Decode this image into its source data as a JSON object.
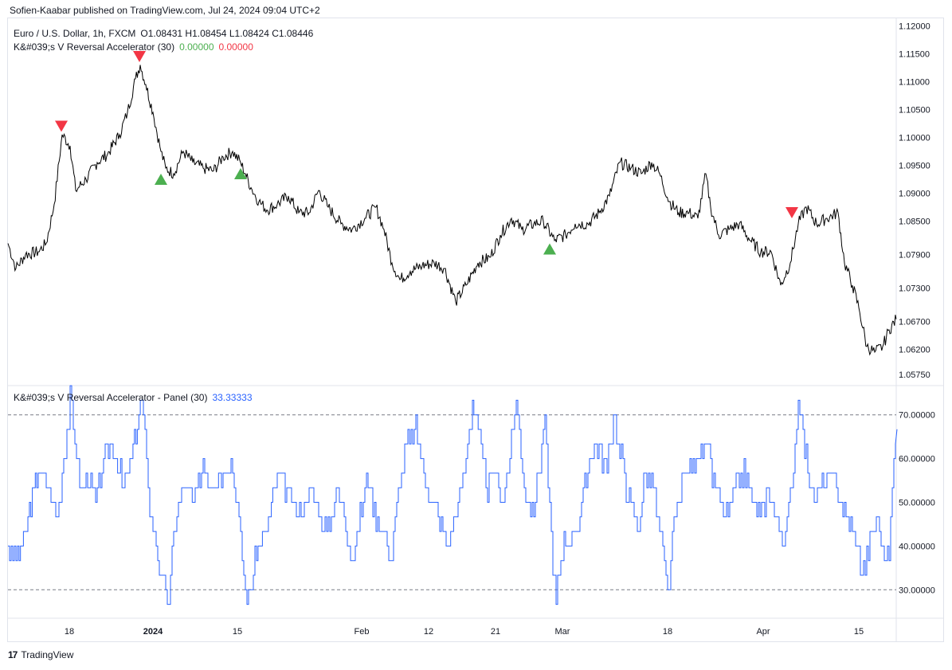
{
  "header": {
    "text": "Sofien-Kaabar published on TradingView.com, Jul 24, 2024 09:04 UTC+2"
  },
  "footer": {
    "brand": "TradingView",
    "logo_text": "17"
  },
  "price_panel": {
    "symbol": "Euro / U.S. Dollar, 1h, FXCM",
    "ohlc": "O1.08431  H1.08454  L1.08424  C1.08446",
    "indicator_name": "K&#039;s V Reversal Accelerator (30)",
    "indicator_val1": "0.00000",
    "indicator_val2": "0.00000",
    "color_up": "#4caf50",
    "color_down": "#f23645"
  },
  "osc_panel": {
    "label": "K&#039;s V Reversal Accelerator - Panel (30)",
    "value": "33.33333",
    "color": "#2962ff"
  },
  "x_axis": {
    "ticks": [
      {
        "label": "18",
        "x": 87,
        "bold": false
      },
      {
        "label": "2024",
        "x": 192,
        "bold": true
      },
      {
        "label": "15",
        "x": 298,
        "bold": false
      },
      {
        "label": "Feb",
        "x": 454,
        "bold": false
      },
      {
        "label": "12",
        "x": 538,
        "bold": false
      },
      {
        "label": "21",
        "x": 622,
        "bold": false
      },
      {
        "label": "Mar",
        "x": 706,
        "bold": false
      },
      {
        "label": "18",
        "x": 838,
        "bold": false
      },
      {
        "label": "Apr",
        "x": 958,
        "bold": false
      },
      {
        "label": "15",
        "x": 1078,
        "bold": false
      }
    ]
  },
  "chart_data": [
    {
      "type": "line",
      "title": "Euro / U.S. Dollar, 1h, FXCM",
      "ylim": [
        1.0555,
        1.1215
      ],
      "y_ticks": [
        "1.12000",
        "1.11500",
        "1.11000",
        "1.10500",
        "1.10000",
        "1.09500",
        "1.09000",
        "1.08500",
        "1.07900",
        "1.07300",
        "1.06700",
        "1.06200",
        "1.05750"
      ],
      "series": [
        {
          "values": [
            [
              0,
              1.081
            ],
            [
              10,
              1.0765
            ],
            [
              22,
              1.079
            ],
            [
              38,
              1.0795
            ],
            [
              48,
              1.081
            ],
            [
              58,
              1.088
            ],
            [
              68,
              1.1005
            ],
            [
              78,
              1.0985
            ],
            [
              85,
              1.0905
            ],
            [
              98,
              1.0925
            ],
            [
              112,
              1.0955
            ],
            [
              125,
              1.097
            ],
            [
              140,
              1.1005
            ],
            [
              150,
              1.1045
            ],
            [
              160,
              1.1105
            ],
            [
              166,
              1.113
            ],
            [
              173,
              1.1095
            ],
            [
              182,
              1.1045
            ],
            [
              192,
              1.0975
            ],
            [
              198,
              1.0945
            ],
            [
              208,
              1.0935
            ],
            [
              220,
              1.0975
            ],
            [
              232,
              1.0955
            ],
            [
              245,
              1.0945
            ],
            [
              258,
              1.094
            ],
            [
              270,
              1.0965
            ],
            [
              282,
              1.0975
            ],
            [
              292,
              1.0955
            ],
            [
              298,
              1.0935
            ],
            [
              305,
              1.091
            ],
            [
              315,
              1.0885
            ],
            [
              325,
              1.087
            ],
            [
              338,
              1.088
            ],
            [
              352,
              1.0895
            ],
            [
              365,
              1.0865
            ],
            [
              378,
              1.0865
            ],
            [
              390,
              1.0905
            ],
            [
              402,
              1.0875
            ],
            [
              418,
              1.0845
            ],
            [
              432,
              1.0835
            ],
            [
              448,
              1.0855
            ],
            [
              462,
              1.0875
            ],
            [
              472,
              1.0835
            ],
            [
              482,
              1.0775
            ],
            [
              492,
              1.0745
            ],
            [
              505,
              1.076
            ],
            [
              520,
              1.077
            ],
            [
              535,
              1.0775
            ],
            [
              548,
              1.0765
            ],
            [
              562,
              1.0705
            ],
            [
              575,
              1.0735
            ],
            [
              590,
              1.0775
            ],
            [
              605,
              1.0785
            ],
            [
              618,
              1.0825
            ],
            [
              632,
              1.0855
            ],
            [
              645,
              1.0835
            ],
            [
              660,
              1.0845
            ],
            [
              672,
              1.085
            ],
            [
              686,
              1.0815
            ],
            [
              700,
              1.0825
            ],
            [
              712,
              1.0845
            ],
            [
              728,
              1.0845
            ],
            [
              742,
              1.0865
            ],
            [
              755,
              1.0895
            ],
            [
              768,
              1.0955
            ],
            [
              782,
              1.0945
            ],
            [
              795,
              1.0935
            ],
            [
              808,
              1.0955
            ],
            [
              818,
              1.0935
            ],
            [
              830,
              1.0885
            ],
            [
              842,
              1.0865
            ],
            [
              855,
              1.0865
            ],
            [
              866,
              1.0855
            ],
            [
              876,
              1.0935
            ],
            [
              882,
              1.0875
            ],
            [
              892,
              1.0825
            ],
            [
              905,
              1.0835
            ],
            [
              918,
              1.0845
            ],
            [
              932,
              1.0815
            ],
            [
              945,
              1.0795
            ],
            [
              958,
              1.0795
            ],
            [
              970,
              1.0735
            ],
            [
              982,
              1.0775
            ],
            [
              992,
              1.0845
            ],
            [
              1002,
              1.0875
            ],
            [
              1015,
              1.0845
            ],
            [
              1028,
              1.0855
            ],
            [
              1042,
              1.0865
            ],
            [
              1050,
              1.0775
            ],
            [
              1060,
              1.0735
            ],
            [
              1068,
              1.0695
            ],
            [
              1078,
              1.0625
            ],
            [
              1088,
              1.0615
            ],
            [
              1098,
              1.0625
            ],
            [
              1106,
              1.0655
            ],
            [
              1115,
              1.0674
            ]
          ]
        }
      ],
      "signals": [
        {
          "type": "sell",
          "x": 77,
          "y": 1.102
        },
        {
          "type": "sell",
          "x": 175,
          "y": 1.1145
        },
        {
          "type": "buy",
          "x": 202,
          "y": 1.0925
        },
        {
          "type": "buy",
          "x": 302,
          "y": 1.0935
        },
        {
          "type": "buy",
          "x": 690,
          "y": 1.08
        },
        {
          "type": "sell",
          "x": 994,
          "y": 1.0865
        }
      ]
    },
    {
      "type": "line",
      "title": "K&#039;s V Reversal Accelerator - Panel (30)",
      "ylim": [
        23.5,
        76.5
      ],
      "y_ticks": [
        "70.00000",
        "60.00000",
        "50.00000",
        "40.00000",
        "30.00000"
      ],
      "reference_lines": [
        70,
        30
      ],
      "series": [
        {
          "name": "K&#039;s V Reversal Accelerator - Panel (30)",
          "values": [
            [
              0,
              40
            ],
            [
              12,
              36.7
            ],
            [
              25,
              46.7
            ],
            [
              38,
              56.7
            ],
            [
              50,
              53.3
            ],
            [
              62,
              46.7
            ],
            [
              72,
              63.3
            ],
            [
              78,
              73.3
            ],
            [
              90,
              53.3
            ],
            [
              100,
              56.7
            ],
            [
              110,
              50
            ],
            [
              122,
              60
            ],
            [
              132,
              63.3
            ],
            [
              145,
              53.3
            ],
            [
              155,
              60
            ],
            [
              168,
              73.3
            ],
            [
              178,
              50
            ],
            [
              186,
              40
            ],
            [
              196,
              30
            ],
            [
              202,
              26.7
            ],
            [
              210,
              46.7
            ],
            [
              222,
              53.3
            ],
            [
              235,
              50
            ],
            [
              245,
              60
            ],
            [
              255,
              53.3
            ],
            [
              268,
              56.7
            ],
            [
              280,
              60
            ],
            [
              290,
              46.7
            ],
            [
              298,
              30
            ],
            [
              302,
              26.7
            ],
            [
              312,
              40
            ],
            [
              325,
              43.3
            ],
            [
              338,
              56.7
            ],
            [
              350,
              53.3
            ],
            [
              362,
              46.7
            ],
            [
              372,
              50
            ],
            [
              382,
              53.3
            ],
            [
              392,
              46.7
            ],
            [
              402,
              43.3
            ],
            [
              412,
              53.3
            ],
            [
              422,
              46.7
            ],
            [
              432,
              36.7
            ],
            [
              442,
              46.7
            ],
            [
              452,
              56.7
            ],
            [
              462,
              46.7
            ],
            [
              472,
              43.3
            ],
            [
              482,
              36.7
            ],
            [
              490,
              53.3
            ],
            [
              502,
              63.3
            ],
            [
              512,
              66.7
            ],
            [
              522,
              56.7
            ],
            [
              532,
              50
            ],
            [
              542,
              46.7
            ],
            [
              552,
              40
            ],
            [
              565,
              50
            ],
            [
              575,
              60
            ],
            [
              583,
              73.3
            ],
            [
              592,
              63.3
            ],
            [
              602,
              53.3
            ],
            [
              612,
              56.7
            ],
            [
              622,
              50
            ],
            [
              632,
              63.3
            ],
            [
              638,
              73.3
            ],
            [
              648,
              53.3
            ],
            [
              658,
              46.7
            ],
            [
              668,
              60
            ],
            [
              674,
              70
            ],
            [
              682,
              40
            ],
            [
              688,
              26.7
            ],
            [
              698,
              40
            ],
            [
              708,
              43.3
            ],
            [
              718,
              46.7
            ],
            [
              730,
              60
            ],
            [
              742,
              63.3
            ],
            [
              752,
              56.7
            ],
            [
              760,
              70
            ],
            [
              770,
              60
            ],
            [
              780,
              50
            ],
            [
              790,
              43.3
            ],
            [
              800,
              56.7
            ],
            [
              810,
              53.3
            ],
            [
              820,
              40
            ],
            [
              828,
              30
            ],
            [
              838,
              46.7
            ],
            [
              850,
              56.7
            ],
            [
              862,
              60
            ],
            [
              874,
              63.3
            ],
            [
              884,
              56.7
            ],
            [
              894,
              50
            ],
            [
              904,
              46.7
            ],
            [
              914,
              53.3
            ],
            [
              924,
              56.7
            ],
            [
              934,
              50
            ],
            [
              944,
              46.7
            ],
            [
              954,
              53.3
            ],
            [
              964,
              46.7
            ],
            [
              974,
              40
            ],
            [
              984,
              53.3
            ],
            [
              992,
              73.3
            ],
            [
              1002,
              60
            ],
            [
              1012,
              50
            ],
            [
              1022,
              53.3
            ],
            [
              1032,
              56.7
            ],
            [
              1042,
              53.3
            ],
            [
              1052,
              46.7
            ],
            [
              1062,
              43.3
            ],
            [
              1072,
              33.3
            ],
            [
              1082,
              40
            ],
            [
              1090,
              46.7
            ],
            [
              1100,
              36.7
            ],
            [
              1106,
              40
            ],
            [
              1112,
              60
            ],
            [
              1116,
              66.7
            ]
          ]
        }
      ]
    }
  ]
}
